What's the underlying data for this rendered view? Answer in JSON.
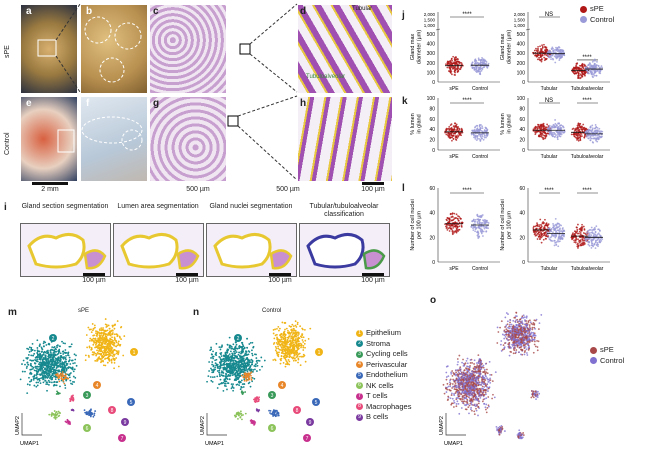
{
  "panels": {
    "a": "a",
    "b": "b",
    "c": "c",
    "d": "d",
    "e": "e",
    "f": "f",
    "g": "g",
    "h": "h",
    "i": "i",
    "j": "j",
    "k": "k",
    "l": "l",
    "m": "m",
    "n": "n",
    "o": "o"
  },
  "row_labels": {
    "spe": "sPE",
    "control": "Control"
  },
  "scale_bars": {
    "a": "2 mm",
    "b": "500 µm",
    "c": "500 µm",
    "d": "100 µm",
    "i": "100 µm"
  },
  "d_labels": {
    "tubular": "Tubular",
    "tubuloalveolar": "Tubuloalveolar"
  },
  "i_titles": [
    "Gland section segmentation",
    "Lumen area segmentation",
    "Gland nuclei segmentation",
    "Tubular/tubuloalveolar classification"
  ],
  "legend": {
    "spe": "sPE",
    "control": "Control"
  },
  "colors": {
    "spe": "#b01818",
    "control": "#9a9ad8"
  },
  "chart_data": [
    {
      "type": "scatter",
      "panel": "j-left",
      "ylabel": "Gland max diameter (µm)",
      "categories": [
        "sPE",
        "Control"
      ],
      "medians": [
        170,
        175
      ],
      "ylim": [
        0,
        500
      ],
      "yticks": [
        0,
        100,
        200,
        300,
        400,
        500
      ],
      "broken_ticks": [
        "1,000",
        "1,500",
        "2,000"
      ],
      "significance": [
        "****"
      ]
    },
    {
      "type": "scatter",
      "panel": "j-right",
      "ylabel": "Gland max diameter (µm)",
      "categories": [
        "Tubular",
        "Tubuloalveolar"
      ],
      "series": [
        {
          "name": "sPE",
          "medians": [
            300,
            120
          ]
        },
        {
          "name": "Control",
          "medians": [
            295,
            135
          ]
        }
      ],
      "ylim": [
        0,
        500
      ],
      "yticks": [
        0,
        100,
        200,
        300,
        400,
        500
      ],
      "broken_ticks": [
        "1,000",
        "1,500",
        "2,000"
      ],
      "significance": [
        "NS",
        "****"
      ]
    },
    {
      "type": "scatter",
      "panel": "k-left",
      "ylabel": "% lumen in gland",
      "categories": [
        "sPE",
        "Control"
      ],
      "medians": [
        35,
        33
      ],
      "ylim": [
        0,
        100
      ],
      "yticks": [
        0,
        20,
        40,
        60,
        80,
        100
      ],
      "significance": [
        "****"
      ]
    },
    {
      "type": "scatter",
      "panel": "k-right",
      "ylabel": "% lumen in gland",
      "categories": [
        "Tubular",
        "Tubuloalveolar"
      ],
      "series": [
        {
          "name": "sPE",
          "medians": [
            38,
            34
          ]
        },
        {
          "name": "Control",
          "medians": [
            38,
            31
          ]
        }
      ],
      "ylim": [
        0,
        100
      ],
      "yticks": [
        0,
        20,
        40,
        60,
        80,
        100
      ],
      "significance": [
        "NS",
        "****"
      ]
    },
    {
      "type": "scatter",
      "panel": "l-left",
      "ylabel": "Number of cell nuclei per 100 µm",
      "categories": [
        "sPE",
        "Control"
      ],
      "medians": [
        31,
        30
      ],
      "ylim": [
        0,
        60
      ],
      "yticks": [
        0,
        20,
        40,
        60
      ],
      "significance": [
        "****"
      ]
    },
    {
      "type": "scatter",
      "panel": "l-right",
      "ylabel": "Number of cell nuclei per 100 µm",
      "categories": [
        "Tubular",
        "Tubuloalveolar"
      ],
      "series": [
        {
          "name": "sPE",
          "medians": [
            26,
            21
          ]
        },
        {
          "name": "Control",
          "medians": [
            23,
            20
          ]
        }
      ],
      "ylim": [
        0,
        60
      ],
      "yticks": [
        0,
        20,
        40,
        60
      ],
      "significance": [
        "****",
        "****"
      ]
    }
  ],
  "umap": {
    "m_title": "sPE",
    "n_title": "Control",
    "x": "UMAP1",
    "y": "UMAP2",
    "clusters": [
      {
        "id": "1",
        "name": "Epithelium",
        "color": "#f0b416"
      },
      {
        "id": "2",
        "name": "Stroma",
        "color": "#16898f"
      },
      {
        "id": "3",
        "name": "Cycling cells",
        "color": "#3a9a5a"
      },
      {
        "id": "4",
        "name": "Perivascular",
        "color": "#e8862a"
      },
      {
        "id": "5",
        "name": "Endothelium",
        "color": "#3a68b8"
      },
      {
        "id": "6",
        "name": "NK cells",
        "color": "#8cc35a"
      },
      {
        "id": "7",
        "name": "T cells",
        "color": "#c8308e"
      },
      {
        "id": "8",
        "name": "Macrophages",
        "color": "#e84a7a"
      },
      {
        "id": "9",
        "name": "B cells",
        "color": "#7a3aa0"
      }
    ]
  }
}
